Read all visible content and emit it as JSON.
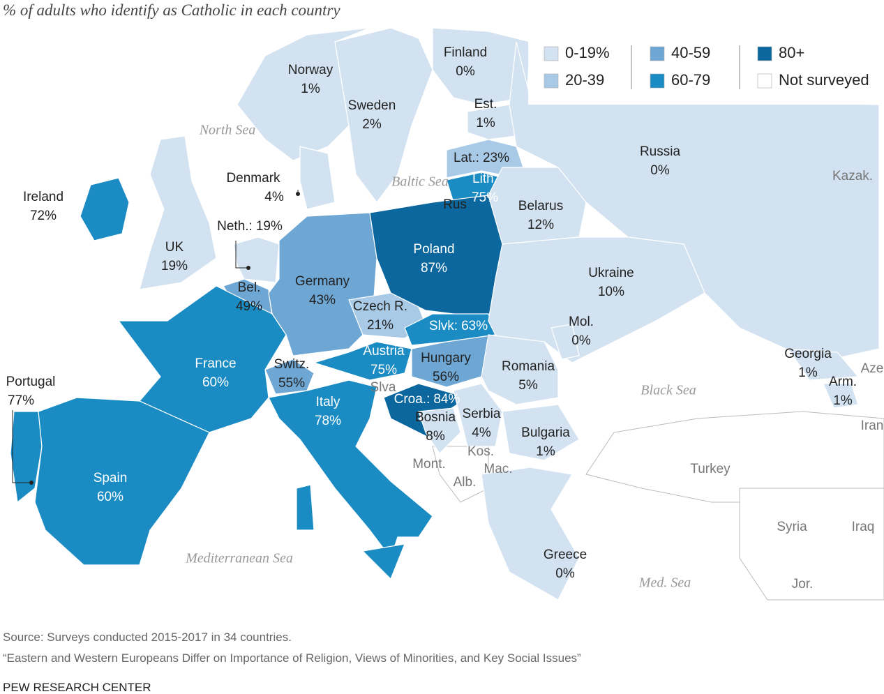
{
  "title": "% of adults who identify as Catholic in each country",
  "legend": [
    {
      "label": "0-19%",
      "color": "#d2e2f1"
    },
    {
      "label": "20-39",
      "color": "#a8cae6"
    },
    {
      "label": "40-59",
      "color": "#6ea6d4"
    },
    {
      "label": "60-79",
      "color": "#1a8cc3"
    },
    {
      "label": "80+",
      "color": "#0b679e"
    },
    {
      "label": "Not surveyed",
      "color": "#ffffff"
    }
  ],
  "countries": [
    {
      "name": "Finland",
      "value": "0%",
      "color": "#d2e2f1"
    },
    {
      "name": "Norway",
      "value": "1%",
      "color": "#d2e2f1"
    },
    {
      "name": "Sweden",
      "value": "2%",
      "color": "#d2e2f1"
    },
    {
      "name": "Est.",
      "value": "1%",
      "color": "#d2e2f1"
    },
    {
      "name": "Lat.:",
      "value": "23%",
      "color": "#a8cae6"
    },
    {
      "name": "Lith.",
      "value": "75%",
      "color": "#1a8cc3"
    },
    {
      "name": "Russia",
      "value": "0%",
      "color": "#d2e2f1"
    },
    {
      "name": "Denmark",
      "value": "4%",
      "color": "#d2e2f1"
    },
    {
      "name": "Ireland",
      "value": "72%",
      "color": "#1a8cc3"
    },
    {
      "name": "UK",
      "value": "19%",
      "color": "#d2e2f1"
    },
    {
      "name": "Neth.:",
      "value": "19%",
      "color": "#d2e2f1"
    },
    {
      "name": "Bel.",
      "value": "49%",
      "color": "#6ea6d4"
    },
    {
      "name": "Germany",
      "value": "43%",
      "color": "#6ea6d4"
    },
    {
      "name": "Poland",
      "value": "87%",
      "color": "#0b679e"
    },
    {
      "name": "Belarus",
      "value": "12%",
      "color": "#d2e2f1"
    },
    {
      "name": "Czech R.",
      "value": "21%",
      "color": "#a8cae6"
    },
    {
      "name": "Slvk:",
      "value": "63%",
      "color": "#1a8cc3"
    },
    {
      "name": "Ukraine",
      "value": "10%",
      "color": "#d2e2f1"
    },
    {
      "name": "Mol.",
      "value": "0%",
      "color": "#d2e2f1"
    },
    {
      "name": "France",
      "value": "60%",
      "color": "#1a8cc3"
    },
    {
      "name": "Switz.",
      "value": "55%",
      "color": "#6ea6d4"
    },
    {
      "name": "Austria",
      "value": "75%",
      "color": "#1a8cc3"
    },
    {
      "name": "Hungary",
      "value": "56%",
      "color": "#6ea6d4"
    },
    {
      "name": "Romania",
      "value": "5%",
      "color": "#d2e2f1"
    },
    {
      "name": "Georgia",
      "value": "1%",
      "color": "#d2e2f1"
    },
    {
      "name": "Arm.",
      "value": "1%",
      "color": "#d2e2f1"
    },
    {
      "name": "Italy",
      "value": "78%",
      "color": "#1a8cc3"
    },
    {
      "name": "Croa.:",
      "value": "84%",
      "color": "#0b679e"
    },
    {
      "name": "Serbia",
      "value": "4%",
      "color": "#d2e2f1"
    },
    {
      "name": "Bosnia",
      "value": "8%",
      "color": "#d2e2f1"
    },
    {
      "name": "Bulgaria",
      "value": "1%",
      "color": "#d2e2f1"
    },
    {
      "name": "Greece",
      "value": "0%",
      "color": "#d2e2f1"
    },
    {
      "name": "Portugal",
      "value": "77%",
      "color": "#1a8cc3"
    },
    {
      "name": "Spain",
      "value": "60%",
      "color": "#1a8cc3"
    }
  ],
  "other_labels": [
    "Kazak.",
    "Aze",
    "Iran",
    "Turkey",
    "Syria",
    "Iraq",
    "Jor.",
    "Rus",
    "Slva",
    "Mont.",
    "Kos.",
    "Mac.",
    "Alb."
  ],
  "seas": [
    "North Sea",
    "Baltic Sea",
    "Black Sea",
    "Mediterranean Sea",
    "Med. Sea"
  ],
  "footer": {
    "source": "Source: Surveys conducted 2015-2017 in 34 countries.",
    "report": "“Eastern and Western Europeans Differ on Importance of Religion, Views of Minorities, and Key Social Issues”",
    "org": "PEW RESEARCH CENTER"
  }
}
